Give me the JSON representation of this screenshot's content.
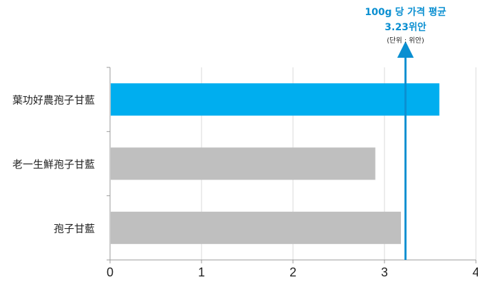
{
  "chart_data": {
    "type": "bar",
    "orientation": "horizontal",
    "categories": [
      "葉功好農孢子甘藍",
      "老一生鮮孢子甘藍",
      "孢子甘藍"
    ],
    "values": [
      3.6,
      2.9,
      3.18
    ],
    "xlim": [
      0,
      4
    ],
    "xticks": [
      "0",
      "1",
      "2",
      "3",
      "4"
    ],
    "grid": true,
    "colors": {
      "highlight": "#00aeef",
      "default": "#bfbfbf",
      "average_line": "#0a8fd1"
    },
    "highlight_index": 0,
    "average": {
      "value": 3.23,
      "title_line1": "100g 당 가격 평균",
      "title_line2": "3.23위안",
      "unit_note": "(단위 : 위안)"
    }
  }
}
